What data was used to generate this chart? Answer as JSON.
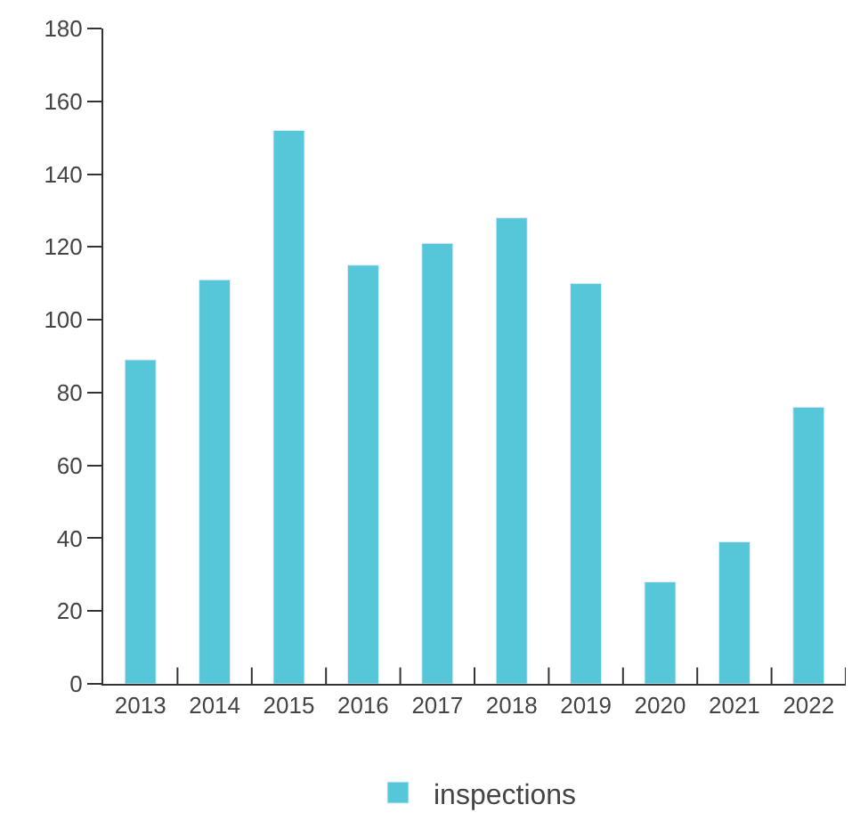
{
  "chart_data": {
    "type": "bar",
    "categories": [
      "2013",
      "2014",
      "2015",
      "2016",
      "2017",
      "2018",
      "2019",
      "2020",
      "2021",
      "2022"
    ],
    "series": [
      {
        "name": "inspections",
        "color": "#56c7d8",
        "values": [
          89,
          111,
          152,
          115,
          121,
          128,
          110,
          28,
          39,
          76
        ]
      }
    ],
    "ylim": [
      0,
      180
    ],
    "yticks": [
      0,
      20,
      40,
      60,
      80,
      100,
      120,
      140,
      160,
      180
    ],
    "legend": "bottom"
  }
}
